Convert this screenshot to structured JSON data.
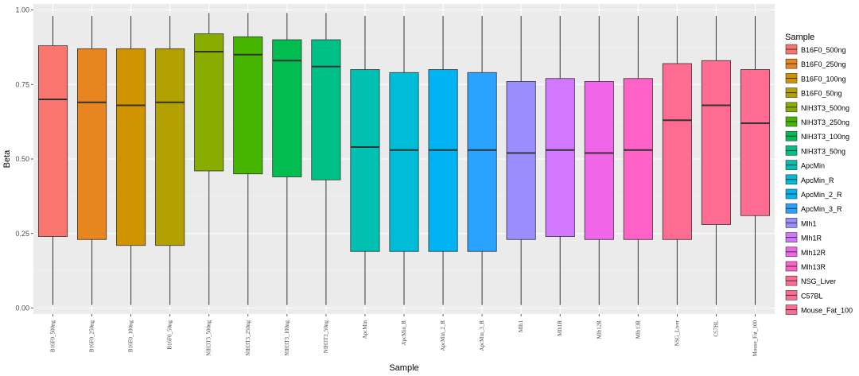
{
  "chart_data": {
    "type": "boxplot",
    "title": "",
    "xlabel": "Sample",
    "ylabel": "Beta",
    "ylim": [
      -0.02,
      1.02
    ],
    "yticks": [
      0.0,
      0.25,
      0.5,
      0.75,
      1.0
    ],
    "ytick_labels": [
      "0.00",
      "0.25",
      "0.50",
      "0.75",
      "1.00"
    ],
    "grid": true,
    "legend_title": "Sample",
    "legend_position": "right",
    "categories": [
      "B16F0_500ng",
      "B16F0_250ng",
      "B16F0_100ng",
      "B16F0_50ng",
      "NIH3T3_500ng",
      "NIH3T3_250ng",
      "NIH3T3_100ng",
      "NIH3T3_50ng",
      "ApcMin",
      "ApcMin_R",
      "ApcMin_2_R",
      "ApcMin_3_R",
      "Mlh1",
      "Mlh1R",
      "Mlh12R",
      "Mlh13R",
      "NSG_Liver",
      "C57BL",
      "Mouse_Fat_100"
    ],
    "colors": [
      "#F8766D",
      "#E7851E",
      "#D09400",
      "#B2A100",
      "#89AC00",
      "#45B500",
      "#00BC51",
      "#00C087",
      "#00C0B2",
      "#00BCD6",
      "#00B3F2",
      "#29A3FF",
      "#9C8DFF",
      "#D277FF",
      "#F166E8",
      "#FF61C7",
      "#FF6C91",
      "#FF6C91",
      "#FF6C91"
    ],
    "boxes": [
      {
        "name": "B16F0_500ng",
        "min": 0.01,
        "q1": 0.24,
        "median": 0.7,
        "q3": 0.88,
        "max": 0.98
      },
      {
        "name": "B16F0_250ng",
        "min": 0.01,
        "q1": 0.23,
        "median": 0.69,
        "q3": 0.87,
        "max": 0.98
      },
      {
        "name": "B16F0_100ng",
        "min": 0.01,
        "q1": 0.21,
        "median": 0.68,
        "q3": 0.87,
        "max": 0.98
      },
      {
        "name": "B16F0_50ng",
        "min": 0.01,
        "q1": 0.21,
        "median": 0.69,
        "q3": 0.87,
        "max": 0.98
      },
      {
        "name": "NIH3T3_500ng",
        "min": 0.01,
        "q1": 0.46,
        "median": 0.86,
        "q3": 0.92,
        "max": 0.99
      },
      {
        "name": "NIH3T3_250ng",
        "min": 0.01,
        "q1": 0.45,
        "median": 0.85,
        "q3": 0.91,
        "max": 0.99
      },
      {
        "name": "NIH3T3_100ng",
        "min": 0.01,
        "q1": 0.44,
        "median": 0.83,
        "q3": 0.9,
        "max": 0.99
      },
      {
        "name": "NIH3T3_50ng",
        "min": 0.01,
        "q1": 0.43,
        "median": 0.81,
        "q3": 0.9,
        "max": 0.99
      },
      {
        "name": "ApcMin",
        "min": 0.01,
        "q1": 0.19,
        "median": 0.54,
        "q3": 0.8,
        "max": 0.98
      },
      {
        "name": "ApcMin_R",
        "min": 0.01,
        "q1": 0.19,
        "median": 0.53,
        "q3": 0.79,
        "max": 0.98
      },
      {
        "name": "ApcMin_2_R",
        "min": 0.01,
        "q1": 0.19,
        "median": 0.53,
        "q3": 0.8,
        "max": 0.98
      },
      {
        "name": "ApcMin_3_R",
        "min": 0.01,
        "q1": 0.19,
        "median": 0.53,
        "q3": 0.79,
        "max": 0.98
      },
      {
        "name": "Mlh1",
        "min": 0.01,
        "q1": 0.23,
        "median": 0.52,
        "q3": 0.76,
        "max": 0.98
      },
      {
        "name": "Mlh1R",
        "min": 0.01,
        "q1": 0.24,
        "median": 0.53,
        "q3": 0.77,
        "max": 0.98
      },
      {
        "name": "Mlh12R",
        "min": 0.01,
        "q1": 0.23,
        "median": 0.52,
        "q3": 0.76,
        "max": 0.98
      },
      {
        "name": "Mlh13R",
        "min": 0.01,
        "q1": 0.23,
        "median": 0.53,
        "q3": 0.77,
        "max": 0.98
      },
      {
        "name": "NSG_Liver",
        "min": 0.01,
        "q1": 0.23,
        "median": 0.63,
        "q3": 0.82,
        "max": 0.98
      },
      {
        "name": "C57BL",
        "min": 0.01,
        "q1": 0.28,
        "median": 0.68,
        "q3": 0.83,
        "max": 0.98
      },
      {
        "name": "Mouse_Fat_100",
        "min": 0.01,
        "q1": 0.31,
        "median": 0.62,
        "q3": 0.8,
        "max": 0.98
      }
    ]
  }
}
